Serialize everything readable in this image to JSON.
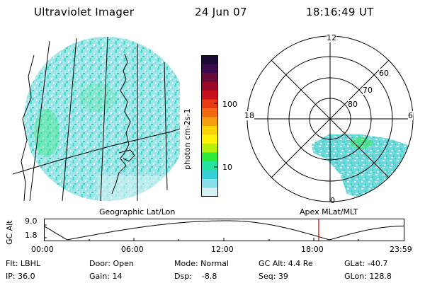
{
  "header": {
    "title": "Ultraviolet Imager",
    "date": "24 Jun 07",
    "time": "18:16:49 UT"
  },
  "colorbar": {
    "label": "photon cm-2s-1",
    "ticks": [
      "100",
      "10"
    ],
    "colors": [
      "#1a0a35",
      "#3a0a4a",
      "#6a0a3a",
      "#9a0a28",
      "#c80e1e",
      "#e83a10",
      "#f26a10",
      "#f6a010",
      "#fad20a",
      "#fcf20a",
      "#b8f00e",
      "#2ee83a",
      "#22e4a0",
      "#38d0d8",
      "#8ae0ea",
      "#d6f2f4"
    ]
  },
  "polar": {
    "mlt_labels": [
      "12",
      "18",
      "6",
      "0"
    ],
    "mlat_labels": [
      "60",
      "70",
      "80"
    ]
  },
  "timeline": {
    "left_title": "Geographic Lat/Lon",
    "right_title": "Apex MLat/MLT",
    "axis_label": "GC Alt",
    "y_ticks": [
      "9.0",
      "1.8"
    ],
    "x_ticks": [
      "00:00",
      "06:00",
      "12:00",
      "18:00",
      "23:59"
    ],
    "altitude_hours": [
      0,
      1.5,
      12.2,
      17.4,
      19,
      23.99
    ],
    "current_hour": 18.28,
    "marker_color": "#e00000"
  },
  "info": {
    "flt": "Flt: LBHL",
    "ip": "IP: 36.0",
    "door": "Door: Open",
    "gain": "Gain: 14",
    "mode": "Mode: Normal",
    "dsp": "Dsp:    -8.8",
    "gcalt": "GC Alt: 4.4 Re",
    "seq": "Seq: 39",
    "glat": "GLat: -40.7",
    "glon": "GLon: 128.8"
  }
}
